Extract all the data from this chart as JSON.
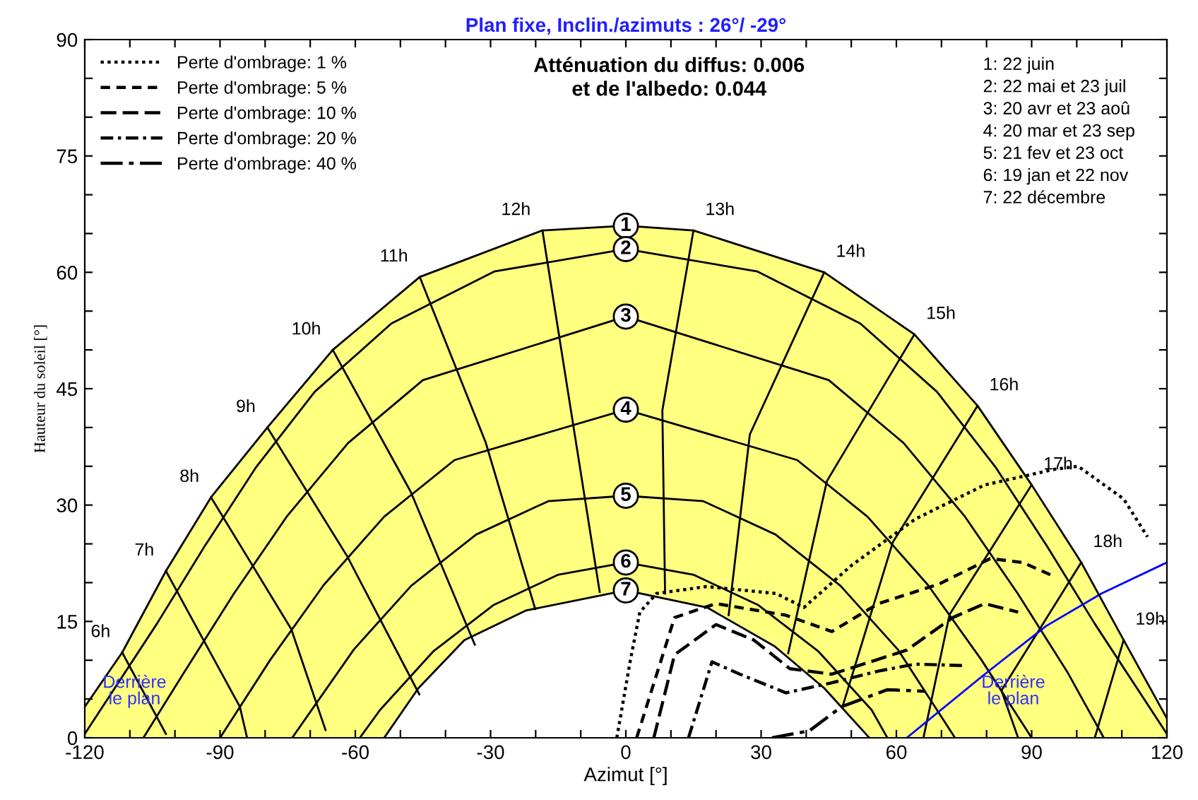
{
  "chart_data": {
    "type": "line",
    "title": "Plan fixe, Inclin./azimuts : 26°/ -29°",
    "xlabel": "Azimut [°]",
    "ylabel": "Hauteur du soleil [°]",
    "xlim": [
      -120,
      120
    ],
    "ylim": [
      0,
      90
    ],
    "xticks": [
      -120,
      {
        "value": -110,
        "label": null
      },
      {
        "value": -100,
        "label": null
      },
      -90,
      {
        "value": -80,
        "label": null
      },
      {
        "value": -70,
        "label": null
      },
      -60,
      {
        "value": -50,
        "label": null
      },
      {
        "value": -40,
        "label": null
      },
      -30,
      {
        "value": -20,
        "label": null
      },
      {
        "value": -10,
        "label": null
      },
      0,
      {
        "value": 10,
        "label": null
      },
      {
        "value": 20,
        "label": null
      },
      30,
      {
        "value": 40,
        "label": null
      },
      {
        "value": 50,
        "label": null
      },
      60,
      {
        "value": 70,
        "label": null
      },
      {
        "value": 80,
        "label": null
      },
      90,
      {
        "value": 100,
        "label": null
      },
      {
        "value": 110,
        "label": null
      },
      120
    ],
    "yticks": [
      0,
      {
        "value": 5,
        "label": null
      },
      {
        "value": 10,
        "label": null
      },
      15,
      {
        "value": 20,
        "label": null
      },
      {
        "value": 25,
        "label": null
      },
      30,
      {
        "value": 35,
        "label": null
      },
      {
        "value": 40,
        "label": null
      },
      45,
      {
        "value": 50,
        "label": null
      },
      {
        "value": 55,
        "label": null
      },
      60,
      {
        "value": 65,
        "label": null
      },
      {
        "value": 70,
        "label": null
      },
      75,
      {
        "value": 80,
        "label": null
      },
      {
        "value": 85,
        "label": null
      },
      90
    ],
    "grid": false,
    "legend": "top left",
    "marker": "none",
    "series": [
      {
        "type": "area",
        "color": "#ffff80",
        "x": [
          -120,
          -111.7,
          -102,
          -92,
          -79.5,
          -65,
          -45.7,
          -18.5,
          0,
          15,
          44,
          64,
          78,
          90,
          101,
          110.4,
          120
        ],
        "values": [
          4,
          11,
          21.5,
          31,
          40,
          50,
          59.4,
          65.4,
          66,
          65.4,
          60,
          52,
          42.8,
          32.6,
          22.6,
          12.6,
          2.5
        ]
      },
      {
        "type": "area",
        "color": "#ffffff",
        "x": [
          -53.6,
          -46,
          -35.8,
          -22.2,
          0,
          18,
          33,
          44,
          54
        ],
        "values": [
          0,
          6.4,
          12.6,
          16.4,
          19,
          16.8,
          11.8,
          6.4,
          0
        ]
      },
      {
        "color": "#000000",
        "x": [
          -120,
          -104,
          -93.4,
          -82.1,
          -69,
          -52,
          -29.2,
          0,
          29.2,
          52,
          69,
          82.1,
          93.4,
          104,
          120
        ],
        "values": [
          0.5,
          14.7,
          24.7,
          34.8,
          44.6,
          53.4,
          60.1,
          63,
          60.1,
          53.4,
          44.6,
          34.8,
          24.7,
          14.7,
          0.5
        ]
      },
      {
        "color": "#000000",
        "x": [
          -107,
          -97.9,
          -86.9,
          -75.1,
          -61.6,
          -45,
          0,
          45,
          61.6,
          75.1,
          86.9,
          97.9,
          106
        ],
        "values": [
          0,
          8.5,
          18.6,
          28.6,
          38,
          46.1,
          54.3,
          46.1,
          38,
          28.6,
          18.6,
          8.5,
          0
        ]
      },
      {
        "color": "#000000",
        "x": [
          -90,
          -78.8,
          -67,
          -53.6,
          -38,
          0,
          38,
          53.6,
          67,
          78.8,
          90
        ],
        "values": [
          0,
          10.1,
          19.7,
          28.5,
          35.8,
          42.3,
          35.8,
          28.5,
          19.7,
          10.1,
          0
        ]
      },
      {
        "color": "#000000",
        "x": [
          -74,
          -60.3,
          -47.6,
          -33.2,
          -17.2,
          0,
          17.2,
          33.2,
          47.6,
          60.3,
          73
        ],
        "values": [
          0,
          11.4,
          19.6,
          26.2,
          30.5,
          31.2,
          30.5,
          26.2,
          19.6,
          11.4,
          0
        ]
      },
      {
        "color": "#000000",
        "x": [
          -59,
          -54.5,
          -42.6,
          -29.4,
          -15.1,
          0,
          15.1,
          29.4,
          42.6,
          54.5,
          58
        ],
        "values": [
          0,
          3.6,
          11.2,
          17.1,
          21,
          22.6,
          21,
          17.1,
          11.2,
          3.6,
          0
        ]
      },
      {
        "color": "#000000",
        "x": [
          -111.7,
          -102
        ],
        "values": [
          11,
          0.5
        ]
      },
      {
        "color": "#000000",
        "x": [
          -102,
          -85.6,
          -84
        ],
        "values": [
          21.5,
          4,
          0
        ]
      },
      {
        "color": "#000000",
        "x": [
          -92,
          -74.2,
          -66.6
        ],
        "values": [
          31,
          14,
          1
        ]
      },
      {
        "color": "#000000",
        "x": [
          -79.5,
          -61.8,
          -45.8
        ],
        "values": [
          40,
          23.4,
          5.6
        ]
      },
      {
        "color": "#000000",
        "x": [
          -65,
          -47.7,
          -33.5
        ],
        "values": [
          50,
          31.7,
          12
        ]
      },
      {
        "color": "#000000",
        "x": [
          -45.7,
          -31.1,
          -20.1
        ],
        "values": [
          59.4,
          38.1,
          16.6
        ]
      },
      {
        "color": "#000000",
        "x": [
          -18.5,
          -12.1,
          -5.8
        ],
        "values": [
          65.4,
          41.9,
          18.8
        ]
      },
      {
        "color": "#000000",
        "x": [
          15,
          8.1,
          8.7
        ],
        "values": [
          65.4,
          42.2,
          18.6
        ]
      },
      {
        "color": "#000000",
        "x": [
          44,
          27.5,
          22.8
        ],
        "values": [
          60,
          39.1,
          15.8
        ]
      },
      {
        "color": "#000000",
        "x": [
          64,
          44.6,
          36
        ],
        "values": [
          52,
          33.1,
          10.9
        ]
      },
      {
        "color": "#000000",
        "x": [
          78,
          59.2,
          48.1
        ],
        "values": [
          42.8,
          25.2,
          4.1
        ]
      },
      {
        "color": "#000000",
        "x": [
          90,
          71.8,
          66
        ],
        "values": [
          32.6,
          15.9,
          0
        ]
      },
      {
        "color": "#000000",
        "x": [
          101,
          83.3,
          87
        ],
        "values": [
          22.6,
          6.1,
          0
        ]
      },
      {
        "color": "#000000",
        "x": [
          110.4,
          104
        ],
        "values": [
          12.6,
          0
        ]
      },
      {
        "name": "Perte d'ombrage: 1 %",
        "color": "#000000",
        "line_style": "dotted",
        "x": [
          -2,
          1,
          3.1,
          6.8,
          17.9,
          33.3,
          39.5,
          50,
          64.2,
          79.6,
          95,
          100.3,
          110.4,
          115.7
        ],
        "values": [
          0,
          10,
          16.2,
          18.6,
          19.5,
          18.6,
          16.8,
          22.2,
          28.2,
          32.6,
          34.6,
          35,
          30.8,
          25.9
        ]
      },
      {
        "name": "Perte d'ombrage: 5 %",
        "color": "#000000",
        "line_style": "dashed",
        "x": [
          2.4,
          10.8,
          20,
          35.5,
          45.7,
          56,
          69.4,
          80.8,
          88,
          95
        ],
        "values": [
          0,
          15.5,
          17.3,
          15.8,
          13.7,
          17.3,
          19.8,
          23.1,
          22.6,
          20.8
        ]
      },
      {
        "name": "Perte d'ombrage: 10 %",
        "color": "#000000",
        "line_style": "longdash",
        "x": [
          6.2,
          10.8,
          20,
          28.4,
          36.4,
          45.7,
          62.3,
          72.5,
          79.6,
          87
        ],
        "values": [
          0,
          10.7,
          14.6,
          12.6,
          8.9,
          8.2,
          11.3,
          15.5,
          17.3,
          16.2
        ]
      },
      {
        "name": "Perte d'ombrage: 20 %",
        "color": "#000000",
        "line_style": "dashdot",
        "x": [
          13.9,
          19.1,
          25.3,
          35.5,
          45.7,
          56,
          64.2,
          75.6
        ],
        "values": [
          0,
          9.8,
          8.2,
          5.8,
          7.1,
          8.6,
          9.5,
          9.3
        ]
      },
      {
        "name": "Perte d'ombrage: 40 %",
        "color": "#000000",
        "line_style": "longdashdot",
        "x": [
          32.4,
          40.7,
          47.8,
          58,
          66.3
        ],
        "values": [
          0,
          0.9,
          4,
          6.2,
          6
        ]
      },
      {
        "color": "#0000ff",
        "x": [
          62.3,
          79.6,
          93.2,
          105.5,
          120
        ],
        "values": [
          0,
          8.2,
          14.4,
          18.6,
          22.6
        ]
      }
    ],
    "annotations": [
      "Atténuation du diffus: 0.006\net de l'albedo: 0.044",
      "1: 22 juin\n2: 22 mai et 23 juil\n3: 20 avr et 23 aoû\n4: 20 mar et 23 sep\n5: 21 fev et 23 oct\n6: 19 jan et 22 nov\n7: 22 décembre",
      {
        "text": "6h",
        "x": -111.7,
        "y": 11
      },
      {
        "text": "7h",
        "x": -102,
        "y": 21.5
      },
      {
        "text": "8h",
        "x": -92,
        "y": 31
      },
      {
        "text": "9h",
        "x": -79.5,
        "y": 40
      },
      {
        "text": "10h",
        "x": -65,
        "y": 50
      },
      {
        "text": "11h",
        "x": -45.7,
        "y": 59.4
      },
      {
        "text": "12h",
        "x": -18.5,
        "y": 65.4
      },
      {
        "text": "13h",
        "x": 15,
        "y": 65.4
      },
      {
        "text": "14h",
        "x": 44,
        "y": 60
      },
      {
        "text": "15h",
        "x": 64,
        "y": 52
      },
      {
        "text": "16h",
        "x": 78,
        "y": 42.8
      },
      {
        "text": "17h",
        "x": 90,
        "y": 32.6
      },
      {
        "text": "18h",
        "x": 101,
        "y": 22.6
      },
      {
        "text": "19h",
        "x": 110.4,
        "y": 12.6
      },
      {
        "text": "1",
        "x": 0,
        "y": 66
      },
      {
        "text": "2",
        "x": 0,
        "y": 63
      },
      {
        "text": "3",
        "x": 0,
        "y": 54.3
      },
      {
        "text": "4",
        "x": 0,
        "y": 42.3
      },
      {
        "text": "5",
        "x": 0,
        "y": 31.2
      },
      {
        "text": "6",
        "x": 0,
        "y": 22.6
      },
      {
        "text": "7",
        "x": 0,
        "y": 19
      },
      "Derrière\nle plan",
      "Derrière\nle plan"
    ]
  }
}
